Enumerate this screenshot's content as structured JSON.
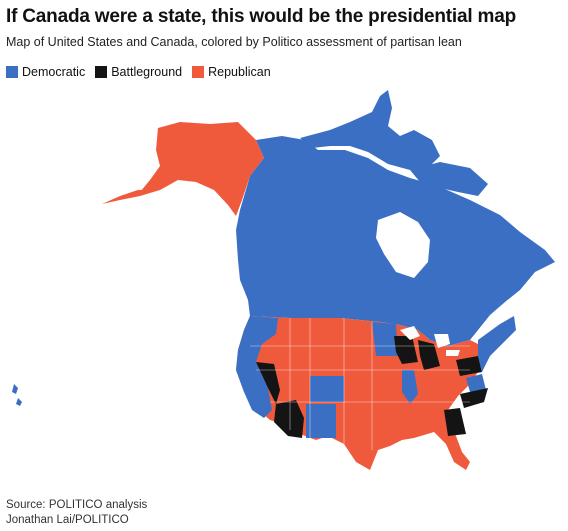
{
  "header": {
    "title": "If Canada were a state, this would be the presidential map",
    "subtitle": "Map of United States and Canada, colored by Politico assessment of partisan lean"
  },
  "legend": [
    {
      "label": "Democratic",
      "color": "#3b6fc4"
    },
    {
      "label": "Battleground",
      "color": "#141414"
    },
    {
      "label": "Republican",
      "color": "#f05a3c"
    }
  ],
  "colors": {
    "democratic": "#3b6fc4",
    "battleground": "#141414",
    "republican": "#f05a3c",
    "water": "#ffffff"
  },
  "footer": {
    "source": "Source: POLITICO analysis",
    "credit": "Jonathan Lai/POLITICO"
  }
}
